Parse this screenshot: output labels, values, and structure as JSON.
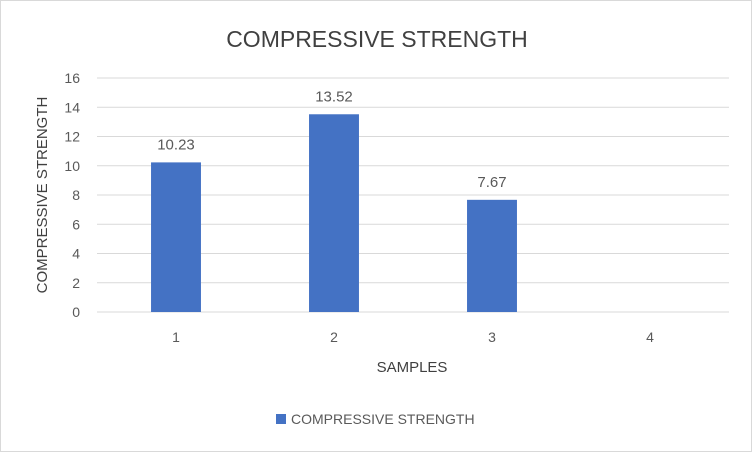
{
  "chart_data": {
    "type": "bar",
    "title": "COMPRESSIVE STRENGTH",
    "xlabel": "SAMPLES",
    "ylabel": "COMPRESSIVE STRENGTH",
    "categories": [
      "1",
      "2",
      "3",
      "4"
    ],
    "series": [
      {
        "name": "COMPRESSIVE STRENGTH",
        "values": [
          10.23,
          13.52,
          7.67,
          null
        ]
      }
    ],
    "data_labels": [
      "10.23",
      "13.52",
      "7.67",
      ""
    ],
    "y_ticks": [
      "0",
      "2",
      "4",
      "6",
      "8",
      "10",
      "12",
      "14",
      "16"
    ],
    "ylim": [
      0,
      16
    ],
    "grid": true,
    "legend_position": "bottom",
    "colors": {
      "bar": "#4472c4",
      "grid": "#d9d9d9",
      "text": "#595959",
      "title": "#404040"
    }
  }
}
